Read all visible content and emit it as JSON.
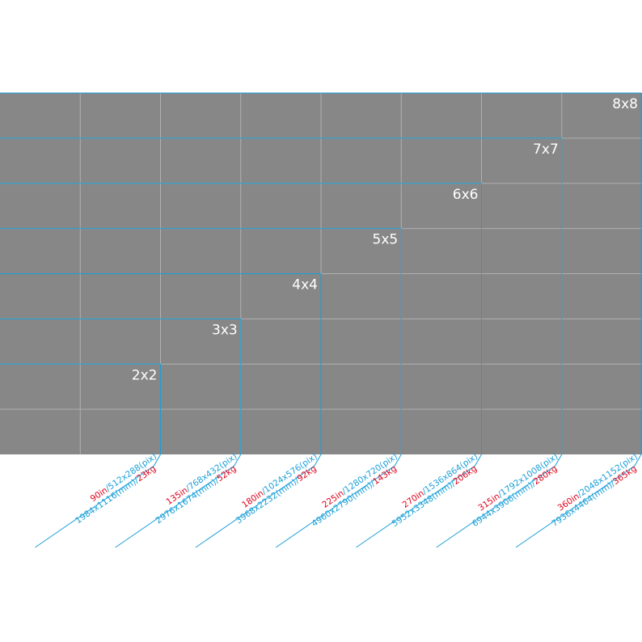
{
  "regions": [
    {
      "label": "2x2",
      "size": "90in",
      "pix": "/512x288(pix)",
      "mm": "1984x1116(mm)/",
      "weight": "23kg"
    },
    {
      "label": "3x3",
      "size": "135in",
      "pix": "/768x432(pix)",
      "mm": "2976x1674(mm)/",
      "weight": "52kg"
    },
    {
      "label": "4x4",
      "size": "180in",
      "pix": "/1024x576(pix)",
      "mm": "3968x2232(mm)/",
      "weight": "92kg"
    },
    {
      "label": "5x5",
      "size": "225in",
      "pix": "/1280x720(pix)",
      "mm": "4960x2790(mm)/",
      "weight": "143kg"
    },
    {
      "label": "6x6",
      "size": "270in",
      "pix": "/1536x864(pix)",
      "mm": "5952x3348(mm)/",
      "weight": "206kg"
    },
    {
      "label": "7x7",
      "size": "315in",
      "pix": "/1792x1008(pix)",
      "mm": "6944x3906(mm)/",
      "weight": "280kg"
    },
    {
      "label": "8x8",
      "size": "360in",
      "pix": "/2048x1152(pix)",
      "mm": "7936x4464(mm)/",
      "weight": "365kg"
    }
  ]
}
